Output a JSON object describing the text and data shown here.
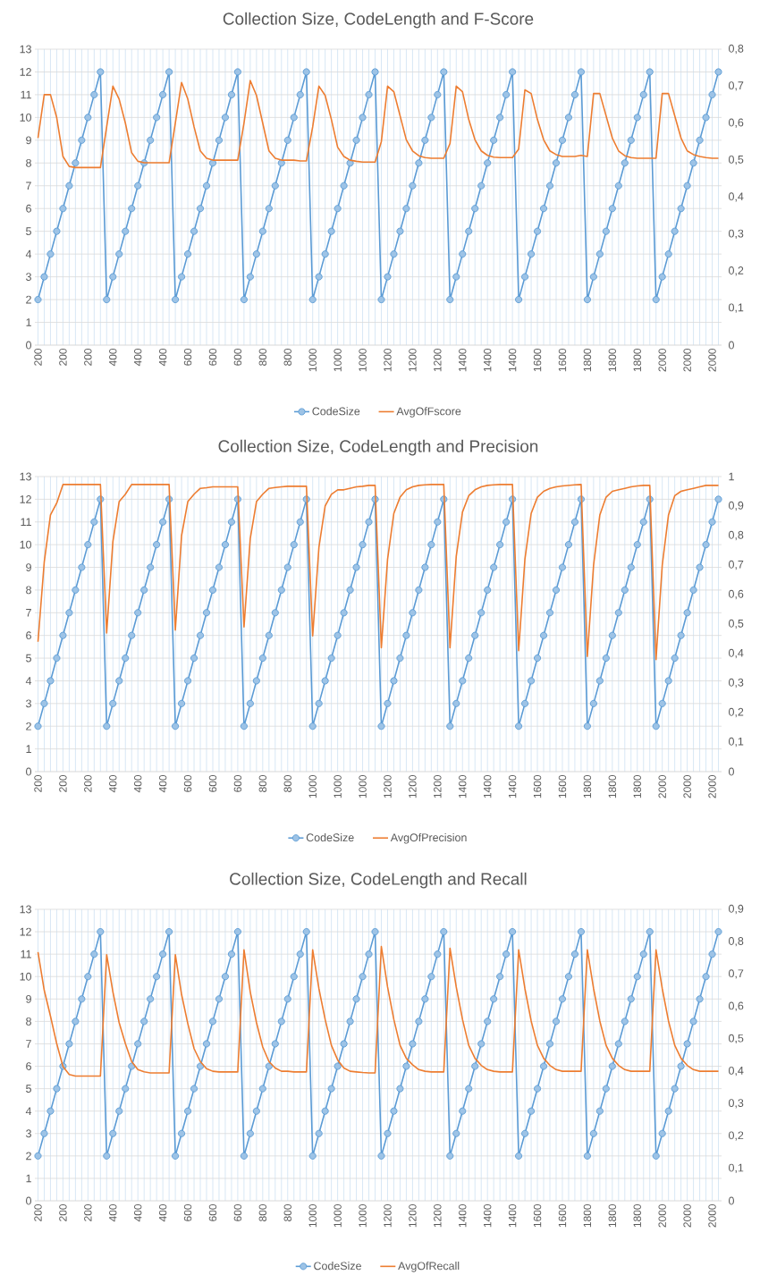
{
  "chart_data": [
    {
      "type": "line",
      "title": "Collection Size, CodeLength and F-Score",
      "categories": [
        "200",
        null,
        null,
        null,
        "200",
        null,
        null,
        null,
        "200",
        null,
        null,
        null,
        "400",
        null,
        null,
        null,
        "400",
        null,
        null,
        null,
        "400",
        null,
        null,
        null,
        "600",
        null,
        null,
        null,
        "600",
        null,
        null,
        null,
        "600",
        null,
        null,
        null,
        "800",
        null,
        null,
        null,
        "800",
        null,
        null,
        null,
        "1000",
        null,
        null,
        null,
        "1000",
        null,
        null,
        null,
        "1000",
        null,
        null,
        null,
        "1200",
        null,
        null,
        null,
        "1200",
        null,
        null,
        null,
        "1200",
        null,
        null,
        null,
        "1400",
        null,
        null,
        null,
        "1400",
        null,
        null,
        null,
        "1400",
        null,
        null,
        null,
        "1600",
        null,
        null,
        null,
        "1600",
        null,
        null,
        null,
        "1800",
        null,
        null,
        null,
        "1800",
        null,
        null,
        null,
        "1800",
        null,
        null,
        null,
        "2000",
        null,
        null,
        null,
        "2000",
        null,
        null,
        null,
        "2000",
        null
      ],
      "series": [
        {
          "name": "CodeSize",
          "color": "#5b9bd5",
          "marker": "circle",
          "values": [
            2,
            3,
            4,
            5,
            6,
            7,
            8,
            9,
            10,
            11,
            12,
            2,
            3,
            4,
            5,
            6,
            7,
            8,
            9,
            10,
            11,
            12,
            2,
            3,
            4,
            5,
            6,
            7,
            8,
            9,
            10,
            11,
            12,
            2,
            3,
            4,
            5,
            6,
            7,
            8,
            9,
            10,
            11,
            12,
            2,
            3,
            4,
            5,
            6,
            7,
            8,
            9,
            10,
            11,
            12,
            2,
            3,
            4,
            5,
            6,
            7,
            8,
            9,
            10,
            11,
            12,
            2,
            3,
            4,
            5,
            6,
            7,
            8,
            9,
            10,
            11,
            12,
            2,
            3,
            4,
            5,
            6,
            7,
            8,
            9,
            10,
            11,
            12,
            2,
            3,
            4,
            5,
            6,
            7,
            8,
            9,
            10,
            11,
            12,
            2,
            3,
            4,
            5,
            6,
            7,
            8,
            9,
            10,
            11,
            12
          ]
        },
        {
          "name": "AvgOfFscore",
          "color": "#ed7d31",
          "marker": "none",
          "axis": "y2",
          "values": [
            0.56,
            0.677,
            0.677,
            0.615,
            0.51,
            0.483,
            0.48,
            0.48,
            0.48,
            0.48,
            0.48,
            0.59,
            0.7,
            0.665,
            0.6,
            0.52,
            0.497,
            0.493,
            0.493,
            0.493,
            0.493,
            0.493,
            0.6,
            0.71,
            0.665,
            0.59,
            0.525,
            0.505,
            0.5,
            0.5,
            0.5,
            0.5,
            0.5,
            0.6,
            0.715,
            0.675,
            0.6,
            0.525,
            0.505,
            0.5,
            0.5,
            0.5,
            0.498,
            0.498,
            0.59,
            0.7,
            0.675,
            0.61,
            0.535,
            0.51,
            0.5,
            0.497,
            0.495,
            0.495,
            0.495,
            0.55,
            0.7,
            0.685,
            0.62,
            0.555,
            0.525,
            0.512,
            0.507,
            0.505,
            0.505,
            0.505,
            0.545,
            0.7,
            0.685,
            0.61,
            0.555,
            0.525,
            0.513,
            0.508,
            0.507,
            0.507,
            0.507,
            0.53,
            0.69,
            0.68,
            0.61,
            0.555,
            0.525,
            0.515,
            0.51,
            0.51,
            0.51,
            0.513,
            0.51,
            0.68,
            0.68,
            0.62,
            0.56,
            0.525,
            0.512,
            0.507,
            0.505,
            0.505,
            0.505,
            0.505,
            0.68,
            0.68,
            0.62,
            0.56,
            0.525,
            0.515,
            0.51,
            0.507,
            0.505,
            0.505
          ]
        }
      ],
      "ylim": [
        0,
        13
      ],
      "yticks": [
        0,
        1,
        2,
        3,
        4,
        5,
        6,
        7,
        8,
        9,
        10,
        11,
        12,
        13
      ],
      "y2lim": [
        0,
        0.8
      ],
      "y2ticks": [
        0,
        {
          "value": 0.1,
          "label": "0,1"
        },
        {
          "value": 0.2,
          "label": "0,2"
        },
        {
          "value": 0.3,
          "label": "0,3"
        },
        {
          "value": 0.4,
          "label": "0,4"
        },
        {
          "value": 0.5,
          "label": "0,5"
        },
        {
          "value": 0.6,
          "label": "0,6"
        },
        {
          "value": 0.7,
          "label": "0,7"
        },
        {
          "value": 0.8,
          "label": "0,8"
        }
      ],
      "grid": true,
      "legend": "bottom"
    },
    {
      "type": "line",
      "title": "Collection Size, CodeLength and Precision",
      "categories": [
        "200",
        null,
        null,
        null,
        "200",
        null,
        null,
        null,
        "200",
        null,
        null,
        null,
        "400",
        null,
        null,
        null,
        "400",
        null,
        null,
        null,
        "400",
        null,
        null,
        null,
        "600",
        null,
        null,
        null,
        "600",
        null,
        null,
        null,
        "600",
        null,
        null,
        null,
        "800",
        null,
        null,
        null,
        "800",
        null,
        null,
        null,
        "1000",
        null,
        null,
        null,
        "1000",
        null,
        null,
        null,
        "1000",
        null,
        null,
        null,
        "1200",
        null,
        null,
        null,
        "1200",
        null,
        null,
        null,
        "1200",
        null,
        null,
        null,
        "1400",
        null,
        null,
        null,
        "1400",
        null,
        null,
        null,
        "1400",
        null,
        null,
        null,
        "1600",
        null,
        null,
        null,
        "1600",
        null,
        null,
        null,
        "1800",
        null,
        null,
        null,
        "1800",
        null,
        null,
        null,
        "1800",
        null,
        null,
        null,
        "2000",
        null,
        null,
        null,
        "2000",
        null,
        null,
        null,
        "2000",
        null
      ],
      "series": [
        {
          "name": "CodeSize",
          "color": "#5b9bd5",
          "marker": "circle",
          "values": [
            2,
            3,
            4,
            5,
            6,
            7,
            8,
            9,
            10,
            11,
            12,
            2,
            3,
            4,
            5,
            6,
            7,
            8,
            9,
            10,
            11,
            12,
            2,
            3,
            4,
            5,
            6,
            7,
            8,
            9,
            10,
            11,
            12,
            2,
            3,
            4,
            5,
            6,
            7,
            8,
            9,
            10,
            11,
            12,
            2,
            3,
            4,
            5,
            6,
            7,
            8,
            9,
            10,
            11,
            12,
            2,
            3,
            4,
            5,
            6,
            7,
            8,
            9,
            10,
            11,
            12,
            2,
            3,
            4,
            5,
            6,
            7,
            8,
            9,
            10,
            11,
            12,
            2,
            3,
            4,
            5,
            6,
            7,
            8,
            9,
            10,
            11,
            12,
            2,
            3,
            4,
            5,
            6,
            7,
            8,
            9,
            10,
            11,
            12,
            2,
            3,
            4,
            5,
            6,
            7,
            8,
            9,
            10,
            11,
            12
          ]
        },
        {
          "name": "AvgOfPrecision",
          "color": "#ed7d31",
          "marker": "none",
          "axis": "y2",
          "values": [
            0.44,
            0.71,
            0.87,
            0.91,
            0.973,
            0.973,
            0.973,
            0.973,
            0.973,
            0.973,
            0.973,
            0.47,
            0.78,
            0.915,
            0.94,
            0.973,
            0.973,
            0.973,
            0.973,
            0.973,
            0.973,
            0.973,
            0.48,
            0.8,
            0.915,
            0.94,
            0.96,
            0.962,
            0.965,
            0.965,
            0.965,
            0.965,
            0.965,
            0.49,
            0.79,
            0.915,
            0.94,
            0.96,
            0.963,
            0.965,
            0.967,
            0.967,
            0.967,
            0.967,
            0.46,
            0.76,
            0.9,
            0.94,
            0.955,
            0.955,
            0.96,
            0.965,
            0.967,
            0.97,
            0.97,
            0.42,
            0.72,
            0.875,
            0.93,
            0.955,
            0.965,
            0.97,
            0.972,
            0.973,
            0.973,
            0.973,
            0.42,
            0.73,
            0.88,
            0.935,
            0.955,
            0.965,
            0.97,
            0.972,
            0.973,
            0.973,
            0.973,
            0.41,
            0.72,
            0.875,
            0.93,
            0.95,
            0.96,
            0.965,
            0.968,
            0.97,
            0.972,
            0.973,
            0.39,
            0.7,
            0.87,
            0.93,
            0.95,
            0.955,
            0.96,
            0.965,
            0.968,
            0.97,
            0.97,
            0.38,
            0.7,
            0.87,
            0.935,
            0.95,
            0.955,
            0.96,
            0.965,
            0.97,
            0.97,
            0.97
          ]
        }
      ],
      "ylim": [
        0,
        13
      ],
      "yticks": [
        0,
        1,
        2,
        3,
        4,
        5,
        6,
        7,
        8,
        9,
        10,
        11,
        12,
        13
      ],
      "y2lim": [
        0,
        1
      ],
      "y2ticks": [
        0,
        {
          "value": 0.1,
          "label": "0,1"
        },
        {
          "value": 0.2,
          "label": "0,2"
        },
        {
          "value": 0.3,
          "label": "0,3"
        },
        {
          "value": 0.4,
          "label": "0,4"
        },
        {
          "value": 0.5,
          "label": "0,5"
        },
        {
          "value": 0.6,
          "label": "0,6"
        },
        {
          "value": 0.7,
          "label": "0,7"
        },
        {
          "value": 0.8,
          "label": "0,8"
        },
        {
          "value": 0.9,
          "label": "0,9"
        },
        1
      ],
      "grid": true,
      "legend": "bottom"
    },
    {
      "type": "line",
      "title": "Collection Size, CodeLength and Recall",
      "categories": [
        "200",
        null,
        null,
        null,
        "200",
        null,
        null,
        null,
        "200",
        null,
        null,
        null,
        "400",
        null,
        null,
        null,
        "400",
        null,
        null,
        null,
        "400",
        null,
        null,
        null,
        "600",
        null,
        null,
        null,
        "600",
        null,
        null,
        null,
        "600",
        null,
        null,
        null,
        "800",
        null,
        null,
        null,
        "800",
        null,
        null,
        null,
        "1000",
        null,
        null,
        null,
        "1000",
        null,
        null,
        null,
        "1000",
        null,
        null,
        null,
        "1200",
        null,
        null,
        null,
        "1200",
        null,
        null,
        null,
        "1200",
        null,
        null,
        null,
        "1400",
        null,
        null,
        null,
        "1400",
        null,
        null,
        null,
        "1400",
        null,
        null,
        null,
        "1600",
        null,
        null,
        null,
        "1600",
        null,
        null,
        null,
        "1800",
        null,
        null,
        null,
        "1800",
        null,
        null,
        null,
        "1800",
        null,
        null,
        null,
        "2000",
        null,
        null,
        null,
        "2000",
        null,
        null,
        null,
        "2000",
        null
      ],
      "series": [
        {
          "name": "CodeSize",
          "color": "#5b9bd5",
          "marker": "circle",
          "values": [
            2,
            3,
            4,
            5,
            6,
            7,
            8,
            9,
            10,
            11,
            12,
            2,
            3,
            4,
            5,
            6,
            7,
            8,
            9,
            10,
            11,
            12,
            2,
            3,
            4,
            5,
            6,
            7,
            8,
            9,
            10,
            11,
            12,
            2,
            3,
            4,
            5,
            6,
            7,
            8,
            9,
            10,
            11,
            12,
            2,
            3,
            4,
            5,
            6,
            7,
            8,
            9,
            10,
            11,
            12,
            2,
            3,
            4,
            5,
            6,
            7,
            8,
            9,
            10,
            11,
            12,
            2,
            3,
            4,
            5,
            6,
            7,
            8,
            9,
            10,
            11,
            12,
            2,
            3,
            4,
            5,
            6,
            7,
            8,
            9,
            10,
            11,
            12,
            2,
            3,
            4,
            5,
            6,
            7,
            8,
            9,
            10,
            11,
            12,
            2,
            3,
            4,
            5,
            6,
            7,
            8,
            9,
            10,
            11,
            12
          ]
        },
        {
          "name": "AvgOfRecall",
          "color": "#ed7d31",
          "marker": "none",
          "axis": "y2",
          "values": [
            0.768,
            0.65,
            0.57,
            0.485,
            0.415,
            0.39,
            0.385,
            0.385,
            0.385,
            0.385,
            0.385,
            0.76,
            0.645,
            0.55,
            0.485,
            0.43,
            0.405,
            0.398,
            0.395,
            0.395,
            0.395,
            0.395,
            0.76,
            0.637,
            0.547,
            0.47,
            0.43,
            0.408,
            0.4,
            0.398,
            0.398,
            0.398,
            0.398,
            0.775,
            0.645,
            0.55,
            0.475,
            0.43,
            0.41,
            0.4,
            0.4,
            0.398,
            0.398,
            0.398,
            0.775,
            0.655,
            0.56,
            0.48,
            0.435,
            0.41,
            0.4,
            0.398,
            0.396,
            0.395,
            0.395,
            0.785,
            0.66,
            0.56,
            0.48,
            0.44,
            0.42,
            0.405,
            0.4,
            0.398,
            0.398,
            0.398,
            0.78,
            0.66,
            0.56,
            0.48,
            0.44,
            0.418,
            0.405,
            0.4,
            0.398,
            0.398,
            0.398,
            0.775,
            0.655,
            0.555,
            0.48,
            0.44,
            0.418,
            0.405,
            0.4,
            0.4,
            0.4,
            0.4,
            0.775,
            0.655,
            0.555,
            0.48,
            0.44,
            0.418,
            0.405,
            0.4,
            0.4,
            0.4,
            0.4,
            0.775,
            0.655,
            0.555,
            0.48,
            0.44,
            0.418,
            0.405,
            0.4,
            0.4,
            0.4,
            0.4
          ]
        }
      ],
      "ylim": [
        0,
        13
      ],
      "yticks": [
        0,
        1,
        2,
        3,
        4,
        5,
        6,
        7,
        8,
        9,
        10,
        11,
        12,
        13
      ],
      "y2lim": [
        0,
        0.9
      ],
      "y2ticks": [
        0,
        {
          "value": 0.1,
          "label": "0,1"
        },
        {
          "value": 0.2,
          "label": "0,2"
        },
        {
          "value": 0.3,
          "label": "0,3"
        },
        {
          "value": 0.4,
          "label": "0,4"
        },
        {
          "value": 0.5,
          "label": "0,5"
        },
        {
          "value": 0.6,
          "label": "0,6"
        },
        {
          "value": 0.7,
          "label": "0,7"
        },
        {
          "value": 0.8,
          "label": "0,8"
        },
        {
          "value": 0.9,
          "label": "0,9"
        }
      ],
      "grid": true,
      "legend": "bottom"
    }
  ]
}
